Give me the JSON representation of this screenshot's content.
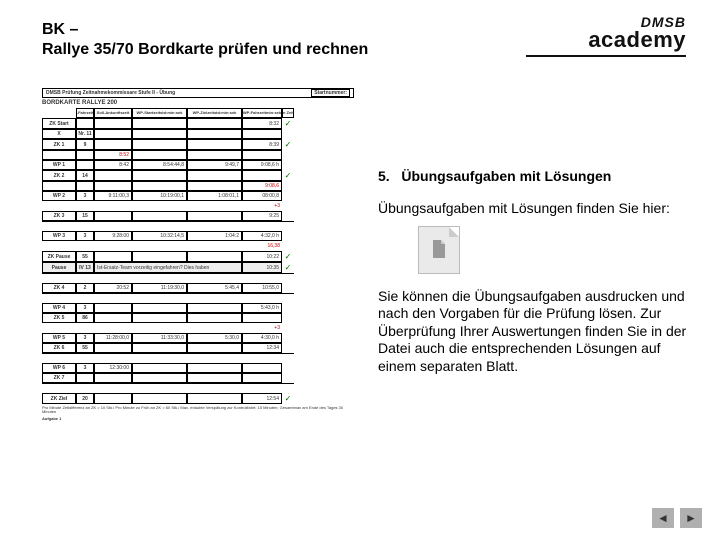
{
  "header": {
    "title_line1": "BK –",
    "title_line2": "Rallye 35/70 Bordkarte prüfen und rechnen",
    "logo_top": "DMSB",
    "logo_bottom": "academy"
  },
  "form": {
    "topbar_left": "DMSB Prüfung Zeitnahmekommissare Stufe II - Übung",
    "topbar_right": "Startnummer:",
    "title": "BORDKARTE RALLYE 200",
    "head": {
      "c1a": "Soll-Fahrzeit",
      "c1b": "min",
      "c2a": "Soll-",
      "c2b": "Ankunftszeit",
      "c3a": "WP-Startzeit",
      "c3b": "std:min:sek",
      "c4a": "WP-Zielzeit",
      "c4b": "std:min:sek",
      "c5a": "WP-Fahrzeit",
      "c5b": "min:sek",
      "c6a": "ZK in Zeit",
      "c6b": "Zielzeit",
      "c6c": "WP-Fahrzeit",
      "c6d": "o.k."
    },
    "rows": [
      {
        "label": "ZK Start",
        "n": "",
        "c3": "",
        "c4": "",
        "c5": "",
        "c6": "8:32",
        "tick": "✓"
      },
      {
        "label": "X",
        "n": "Nr. 11",
        "c3": "",
        "c4": "",
        "c5": "",
        "c6": "",
        "tick": ""
      },
      {
        "label": "ZK 1",
        "n": "9",
        "c3": "",
        "c4": "",
        "c5": "",
        "c6": "8:39",
        "tick": "✓"
      },
      {
        "label": "",
        "n": "",
        "c3": "8:52",
        "c4": "",
        "c5": "",
        "c6": "",
        "tick": "",
        "red": true
      },
      {
        "label": "WP 1",
        "n": "",
        "c3": "8:42",
        "c4": "8:54:44,8",
        "c5": "9:49,7",
        "c6": "9:08,6 h",
        "tick": ""
      },
      {
        "label": "ZK 2",
        "n": "14",
        "c3": "",
        "c4": "",
        "c5": "",
        "c6": "",
        "tick": "✓"
      },
      {
        "label": "",
        "n": "",
        "c3": "",
        "c4": "",
        "c5": "",
        "c6": "9:08,6",
        "tick": "",
        "red": true
      },
      {
        "label": "WP 2",
        "n": "3",
        "c3": "9:11:00,3",
        "c4": "10:19:00,1",
        "c5": "1:08:01,1",
        "c6": "08:00,8",
        "tick": ""
      },
      {
        "label": "",
        "n": "",
        "c3": "",
        "c4": "",
        "c5": "",
        "c6": "+3",
        "tick": "",
        "nob": true,
        "red": true
      },
      {
        "label": "ZK 3",
        "n": "15",
        "c3": "",
        "c4": "",
        "c5": "",
        "c6": "9:25",
        "tick": ""
      },
      {
        "label": "",
        "n": "",
        "c3": "",
        "c4": "",
        "c5": "",
        "c6": "",
        "tick": "",
        "sep": true
      },
      {
        "label": "WP 3",
        "n": "3",
        "c3": "9:28:00",
        "c4": "10:32:14,5",
        "c5": "1:04:2",
        "c6": "4:32,0 h",
        "tick": ""
      },
      {
        "label": "",
        "n": "",
        "c3": "",
        "c4": "",
        "c5": "",
        "c6": "16,38",
        "tick": "",
        "nob": true,
        "red": true
      },
      {
        "label": "ZK Pause",
        "n": "55",
        "c3": "",
        "c4": "",
        "c5": "",
        "c6": "10:22",
        "tick": "✓"
      },
      {
        "label": "Pause",
        "n": "IV 13",
        "c3": "Ist-Ersatz-Team vorzeitig eingefahren? Dies haben",
        "c4": "",
        "c5": "",
        "c6": "10:35",
        "tick": "✓",
        "shaded": true
      },
      {
        "label": "",
        "n": "",
        "c3": "",
        "c4": "",
        "c5": "",
        "c6": "",
        "tick": "",
        "sep": true
      },
      {
        "label": "ZK 4",
        "n": "2",
        "c3": "20:52",
        "c4": "11:19:30,0",
        "c5": "5:45,4",
        "c6": "10:55,0",
        "tick": ""
      },
      {
        "label": "",
        "n": "",
        "c3": "",
        "c4": "",
        "c5": "",
        "c6": "",
        "tick": "",
        "sep": true
      },
      {
        "label": "WP 4",
        "n": "3",
        "c3": "",
        "c4": "",
        "c5": "",
        "c6": "5:43,0 h",
        "tick": ""
      },
      {
        "label": "ZK 5",
        "n": "86",
        "c3": "",
        "c4": "",
        "c5": "",
        "c6": "",
        "tick": ""
      },
      {
        "label": "",
        "n": "",
        "c3": "",
        "c4": "",
        "c5": "",
        "c6": "+3",
        "tick": "",
        "nob": true,
        "red": true
      },
      {
        "label": "WP 5",
        "n": "3",
        "c3": "11:28:00,0",
        "c4": "11:33:30,0",
        "c5": "5:30,0",
        "c6": "4:30,0 h",
        "tick": ""
      },
      {
        "label": "ZK 6",
        "n": "55",
        "c3": "",
        "c4": "",
        "c5": "",
        "c6": "12:34",
        "tick": ""
      },
      {
        "label": "",
        "n": "",
        "c3": "",
        "c4": "",
        "c5": "",
        "c6": "",
        "tick": "",
        "sep": true
      },
      {
        "label": "WP 6",
        "n": "3",
        "c3": "12:30:00",
        "c4": "",
        "c5": "",
        "c6": "",
        "tick": ""
      },
      {
        "label": "ZK 7",
        "n": "",
        "c3": "",
        "c4": "",
        "c5": "",
        "c6": "",
        "tick": ""
      },
      {
        "label": "",
        "n": "",
        "c3": "",
        "c4": "",
        "c5": "",
        "c6": "",
        "tick": "",
        "sep": true
      },
      {
        "label": "ZK Ziel",
        "n": "20",
        "c3": "",
        "c4": "",
        "c5": "",
        "c6": "12:54",
        "tick": "✓"
      }
    ],
    "footnote": "Pro Minute Zeitdifferenz an ZK = 10 Stk./ Pro Minute zu Früh an ZK = 60 Stk./ Max. erlaubte Verspätung zur Kontrollfahrt: 15 Minuten; Gesamtmax am Ende des Tages 30 Minuten",
    "footer_label": "Aufgabe 1"
  },
  "right": {
    "section_num": "5.",
    "section_title": "Übungsaufgaben mit Lösungen",
    "para1": "Übungsaufgaben mit Lösungen finden Sie hier:",
    "para2": "Sie können die Übungsaufgaben ausdrucken und nach den Vorgaben für die Prüfung lösen. Zur Überprüfung Ihrer Auswertungen finden Sie in der Datei auch die entsprechenden Lösungen auf einem separaten Blatt."
  },
  "nav": {
    "prev": "◄",
    "next": "►"
  }
}
